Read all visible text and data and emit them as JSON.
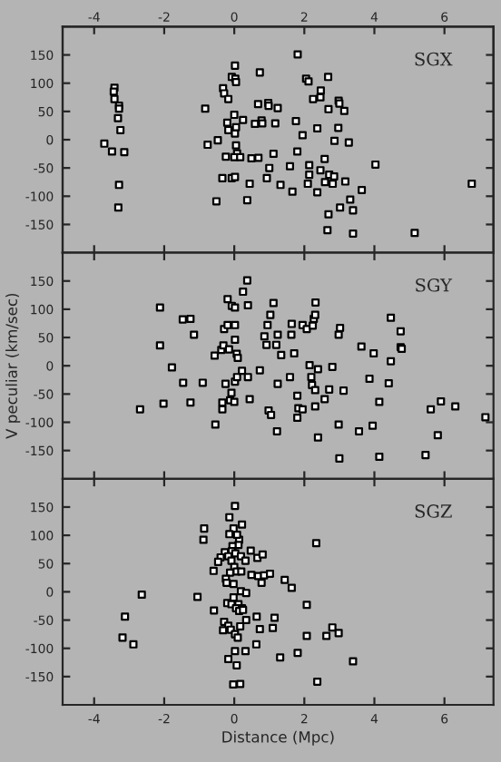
{
  "chart_data": [
    {
      "type": "scatter",
      "title": "SGX",
      "xlim": [
        -4.9,
        7.4
      ],
      "xticks": [
        -4,
        -2,
        0,
        2,
        4,
        6
      ],
      "x2lim": [
        -4.9,
        7.4
      ],
      "x2ticks": [
        -4,
        -2,
        0,
        2,
        4,
        6
      ],
      "ylim": [
        -200,
        200
      ],
      "yticks": [
        -150,
        -100,
        -50,
        0,
        50,
        100,
        150
      ],
      "tick_labels": "y",
      "marker": "square",
      "grid": false,
      "legend": false,
      "series": [
        {
          "color": "#ffffff",
          "x": [
            -3.42,
            -3.44,
            -3.42,
            -3.29,
            -3.29,
            -3.32,
            -3.25,
            -3.71,
            -3.49,
            -3.14,
            -3.29,
            -3.31,
            -0.83,
            -0.76,
            -0.51,
            -0.47,
            -0.32,
            -0.29,
            -0.24,
            -0.34,
            -0.2,
            -0.17,
            -0.17,
            -0.07,
            -0.07,
            0.02,
            0.03,
            0.05,
            0.0,
            0.02,
            0.05,
            0.05,
            0.08,
            0.0,
            0.17,
            0.02,
            0.25,
            0.37,
            0.44,
            0.49,
            0.69,
            0.68,
            0.73,
            0.59,
            0.78,
            0.8,
            0.97,
            0.98,
            1.0,
            0.93,
            1.12,
            1.17,
            1.24,
            1.32,
            1.59,
            1.66,
            1.76,
            1.8,
            1.81,
            1.95,
            2.05,
            2.12,
            2.1,
            2.14,
            2.14,
            2.25,
            2.37,
            2.37,
            2.46,
            2.47,
            2.46,
            2.58,
            2.59,
            2.68,
            2.69,
            2.71,
            2.69,
            2.66,
            2.81,
            2.85,
            2.86,
            2.97,
            2.98,
            3.0,
            3.14,
            3.02,
            3.17,
            3.27,
            3.31,
            3.39,
            3.39,
            3.64,
            4.03,
            5.15,
            6.78
          ],
          "values": [
            92,
            85,
            72,
            60,
            55,
            38,
            17,
            -7,
            -21,
            -22,
            -80,
            -120,
            55,
            -9,
            -109,
            -1,
            91,
            82,
            -30,
            -68,
            30,
            72,
            17,
            -68,
            111,
            131,
            108,
            102,
            44,
            11,
            22,
            -10,
            -24,
            -31,
            -31,
            -66,
            35,
            -107,
            -78,
            -33,
            -32,
            63,
            119,
            28,
            34,
            29,
            65,
            60,
            -50,
            -68,
            -25,
            29,
            56,
            -80,
            -47,
            -92,
            33,
            -21,
            151,
            8,
            108,
            103,
            -78,
            -45,
            -62,
            72,
            20,
            -93,
            -54,
            87,
            75,
            -34,
            -75,
            111,
            54,
            -62,
            -132,
            -160,
            -78,
            -65,
            -2,
            21,
            69,
            64,
            51,
            -120,
            -74,
            -5,
            -106,
            -125,
            -166,
            -89,
            -44,
            -165,
            -78
          ]
        }
      ]
    },
    {
      "type": "scatter",
      "title": "SGY",
      "ylabel": "V peculiar (km/sec)",
      "xlim": [
        -4.9,
        7.4
      ],
      "ylim": [
        -200,
        200
      ],
      "yticks": [
        -150,
        -100,
        -50,
        0,
        50,
        100,
        150
      ],
      "tick_labels": "y",
      "marker": "square",
      "grid": false,
      "legend": false,
      "series": [
        {
          "color": "#ffffff",
          "x": [
            -2.12,
            -2.12,
            -2.69,
            -2.02,
            -1.78,
            -1.47,
            -1.25,
            -1.15,
            -1.46,
            -1.25,
            -0.9,
            -0.56,
            -0.54,
            -0.37,
            -0.31,
            -0.29,
            -0.19,
            -0.19,
            -0.15,
            -0.25,
            -0.34,
            -0.34,
            -0.12,
            -0.08,
            -0.07,
            0.02,
            0.02,
            0.02,
            0.07,
            0.1,
            0.02,
            0.08,
            0.0,
            0.22,
            0.25,
            0.37,
            0.39,
            0.39,
            0.44,
            0.73,
            0.86,
            0.92,
            0.95,
            1.03,
            1.12,
            0.98,
            1.05,
            1.2,
            1.24,
            1.24,
            1.22,
            1.34,
            1.59,
            1.63,
            1.64,
            1.71,
            1.8,
            1.8,
            1.83,
            1.95,
            1.95,
            2.07,
            2.15,
            2.2,
            2.22,
            2.24,
            2.27,
            2.31,
            2.32,
            2.31,
            2.31,
            2.39,
            2.39,
            2.58,
            2.71,
            2.8,
            2.98,
            3.02,
            2.98,
            3.0,
            3.12,
            3.56,
            3.63,
            3.86,
            3.95,
            3.98,
            4.14,
            4.14,
            4.41,
            4.47,
            4.47,
            4.75,
            4.75,
            4.78,
            5.46,
            5.61,
            5.81,
            5.9,
            6.31,
            7.17
          ],
          "values": [
            103,
            36,
            -77,
            -67,
            -3,
            82,
            83,
            55,
            -30,
            -65,
            -30,
            18,
            -104,
            28,
            36,
            65,
            72,
            118,
            29,
            -32,
            -65,
            -77,
            -61,
            -48,
            106,
            103,
            72,
            46,
            21,
            14,
            -28,
            -20,
            -64,
            -9,
            131,
            151,
            107,
            -20,
            -59,
            -8,
            52,
            37,
            72,
            90,
            111,
            -79,
            -87,
            37,
            55,
            -32,
            -116,
            19,
            -20,
            55,
            74,
            22,
            -53,
            -92,
            -75,
            -77,
            72,
            65,
            1,
            -20,
            -34,
            71,
            83,
            90,
            112,
            -43,
            -72,
            -6,
            -127,
            -59,
            -42,
            -2,
            55,
            67,
            -104,
            -164,
            -44,
            -116,
            34,
            -23,
            -106,
            22,
            -64,
            -161,
            -31,
            85,
            8,
            61,
            33,
            30,
            -158,
            -77,
            -123,
            -63,
            -72,
            -91
          ]
        }
      ]
    },
    {
      "type": "scatter",
      "title": "SGZ",
      "xlabel": "Distance (Mpc)",
      "xlim": [
        -4.9,
        7.4
      ],
      "xticks": [
        -4,
        -2,
        0,
        2,
        4,
        6
      ],
      "ylim": [
        -200,
        200
      ],
      "yticks": [
        -150,
        -100,
        -50,
        0,
        50,
        100,
        150
      ],
      "marker": "square",
      "grid": false,
      "legend": false,
      "series": [
        {
          "color": "#ffffff",
          "x": [
            0.02,
            -0.14,
            -0.02,
            -0.86,
            -0.88,
            0.22,
            0.14,
            0.08,
            -0.14,
            0.12,
            -0.05,
            -0.27,
            -0.07,
            -0.17,
            0.03,
            0.19,
            0.32,
            0.47,
            0.66,
            0.81,
            -0.39,
            -0.46,
            -0.08,
            0.0,
            -0.59,
            -0.12,
            0.07,
            0.2,
            -0.24,
            -0.22,
            -0.02,
            0.49,
            0.68,
            0.85,
            1.02,
            0.78,
            1.44,
            1.64,
            2.34,
            0.19,
            0.34,
            -2.64,
            -1.05,
            -0.02,
            -0.2,
            -0.08,
            0.12,
            0.05,
            0.22,
            0.14,
            -0.58,
            0.25,
            2.07,
            -3.12,
            -0.29,
            0.34,
            0.64,
            1.15,
            -0.17,
            0.17,
            -0.1,
            -0.32,
            0.73,
            1.1,
            0.02,
            0.1,
            -3.19,
            -2.88,
            0.63,
            2.07,
            2.63,
            2.8,
            2.98,
            0.02,
            0.32,
            -0.17,
            1.31,
            1.81,
            0.07,
            3.39,
            2.37,
            -0.03,
            0.17
          ],
          "values": [
            152,
            132,
            112,
            112,
            92,
            119,
            92,
            101,
            102,
            83,
            81,
            70,
            72,
            63,
            68,
            63,
            55,
            73,
            60,
            66,
            61,
            53,
            55,
            44,
            37,
            34,
            36,
            36,
            23,
            16,
            14,
            30,
            28,
            29,
            32,
            16,
            21,
            7,
            86,
            1,
            -2,
            -5,
            -9,
            -10,
            -20,
            -22,
            -22,
            -29,
            -29,
            -34,
            -33,
            -32,
            -23,
            -44,
            -53,
            -50,
            -44,
            -46,
            -60,
            -61,
            -67,
            -68,
            -66,
            -64,
            -75,
            -81,
            -81,
            -93,
            -93,
            -78,
            -78,
            -63,
            -73,
            -105,
            -105,
            -119,
            -116,
            -108,
            -130,
            -123,
            -159,
            -164,
            -163
          ]
        }
      ]
    }
  ]
}
